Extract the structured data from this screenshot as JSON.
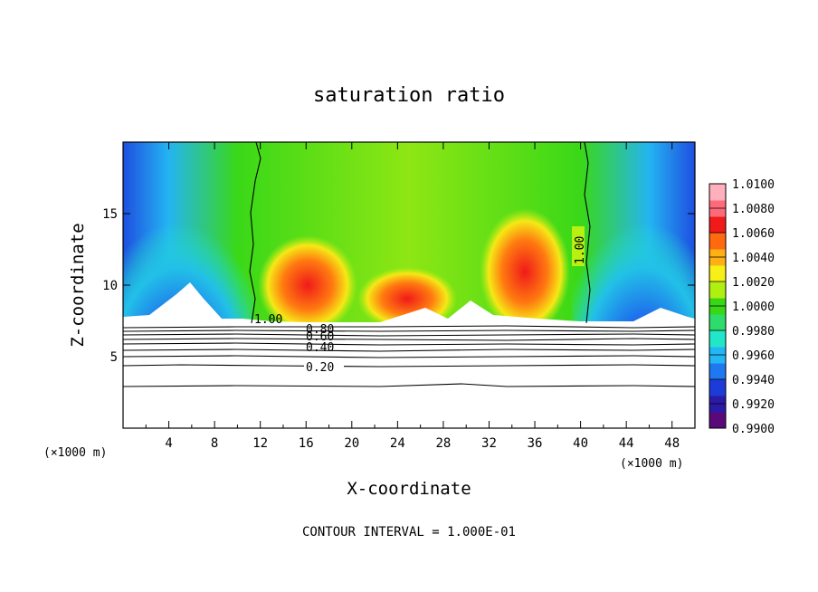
{
  "chart_data": {
    "type": "heatmap",
    "title": "saturation ratio",
    "xlabel": "X-coordinate",
    "ylabel": "Z-coordinate",
    "x_unit_label": "(×1000 m)",
    "y_unit_label": "(×1000 m)",
    "xlim": [
      0,
      50
    ],
    "ylim": [
      0,
      20
    ],
    "x_ticks": [
      4,
      8,
      12,
      16,
      20,
      24,
      28,
      32,
      36,
      40,
      44,
      48
    ],
    "y_ticks": [
      5,
      10,
      15
    ],
    "colorbar": {
      "min": 0.99,
      "max": 1.01,
      "ticks": [
        "1.0100",
        "1.0080",
        "1.0060",
        "1.0040",
        "1.0020",
        "1.0000",
        "0.9980",
        "0.9960",
        "0.9940",
        "0.9920",
        "0.9900"
      ],
      "colormap": [
        "#5a0a78",
        "#2a1aa6",
        "#1d3bd8",
        "#1e78f0",
        "#22b6f4",
        "#22e6c8",
        "#2edc6a",
        "#39d816",
        "#b0f010",
        "#f6f016",
        "#ffb014",
        "#ff6a10",
        "#f01a1a",
        "#ff6a7a",
        "#ffb0bc"
      ]
    },
    "contour_labels": [
      "1.00",
      "1.00",
      "0.80",
      "0.60",
      "0.40",
      "0.20"
    ],
    "contour_levels": [
      0.2,
      0.3,
      0.4,
      0.5,
      0.6,
      0.7,
      0.8,
      0.9,
      1.0
    ],
    "footer": "CONTOUR INTERVAL = 1.000E-01"
  }
}
